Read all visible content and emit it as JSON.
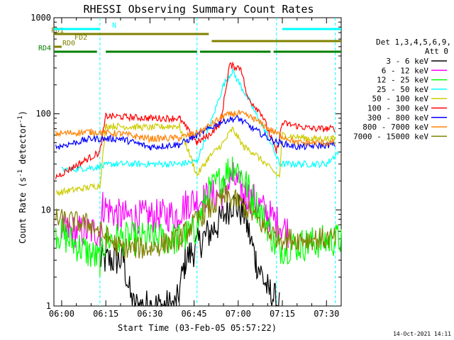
{
  "chart_data": {
    "type": "line",
    "title": "RHESSI Observing Summary Count Rates",
    "xlabel": "Start Time (03-Feb-05 05:57:22)",
    "ylabel_parts": [
      "Count Rate (s",
      "-1",
      " detector",
      "-1",
      ")"
    ],
    "yscale": "log",
    "ylim": [
      1,
      1000
    ],
    "xlim_minutes": [
      "05:57:22",
      "07:35:00"
    ],
    "x_ticks": [
      "06:00",
      "06:15",
      "06:30",
      "06:45",
      "07:00",
      "07:15",
      "07:30"
    ],
    "y_ticks": [
      "1",
      "10",
      "100",
      "1000"
    ],
    "legend_title": [
      "Det 1,3,4,5,6,9,",
      "Att 0"
    ],
    "series": [
      {
        "name": "3 - 6 keV",
        "color": "#000000",
        "points": [
          [
            "06:00",
            null
          ],
          [
            "06:13",
            3
          ],
          [
            "06:21",
            3
          ],
          [
            "06:24",
            1
          ],
          [
            "06:39",
            1
          ],
          [
            "06:42",
            3
          ],
          [
            "06:48",
            5
          ],
          [
            "06:53",
            7
          ],
          [
            "06:58",
            12
          ],
          [
            "07:02",
            9
          ],
          [
            "07:06",
            3
          ],
          [
            "07:10",
            1.5
          ],
          [
            "07:14",
            1
          ]
        ]
      },
      {
        "name": "6 - 12 keV",
        "color": "#ff00ff",
        "points": [
          [
            "06:00",
            6
          ],
          [
            "06:13",
            6
          ],
          [
            "06:14",
            11
          ],
          [
            "06:20",
            8.5
          ],
          [
            "06:30",
            8.5
          ],
          [
            "06:39",
            9
          ],
          [
            "06:43",
            12
          ],
          [
            "06:48",
            13
          ],
          [
            "06:55",
            15
          ],
          [
            "06:58",
            22
          ],
          [
            "07:01",
            16
          ],
          [
            "07:05",
            13
          ],
          [
            "07:10",
            9
          ],
          [
            "07:17",
            6
          ]
        ]
      },
      {
        "name": "12 - 25 keV",
        "color": "#00ff00",
        "points": [
          [
            "05:58",
            6
          ],
          [
            "06:13",
            3
          ],
          [
            "06:15",
            5
          ],
          [
            "06:30",
            5
          ],
          [
            "06:40",
            5
          ],
          [
            "06:45",
            6
          ],
          [
            "06:50",
            15
          ],
          [
            "06:55",
            22
          ],
          [
            "06:58",
            30
          ],
          [
            "07:01",
            24
          ],
          [
            "07:05",
            13
          ],
          [
            "07:10",
            7
          ],
          [
            "07:13",
            4
          ],
          [
            "07:35",
            5
          ]
        ]
      },
      {
        "name": "25 - 50 keV",
        "color": "#00ffff",
        "points": [
          [
            "06:00",
            26
          ],
          [
            "06:13",
            28
          ],
          [
            "06:17",
            30
          ],
          [
            "06:30",
            30
          ],
          [
            "06:40",
            30
          ],
          [
            "06:46",
            32
          ],
          [
            "06:50",
            70
          ],
          [
            "06:55",
            200
          ],
          [
            "06:58",
            280
          ],
          [
            "07:03",
            150
          ],
          [
            "07:06",
            100
          ],
          [
            "07:10",
            60
          ],
          [
            "07:14",
            30
          ],
          [
            "07:18",
            30
          ],
          [
            "07:30",
            30
          ],
          [
            "07:34",
            40
          ]
        ]
      },
      {
        "name": "50 - 100 keV",
        "color": "#cccc00",
        "points": [
          [
            "05:58",
            15
          ],
          [
            "06:13",
            18
          ],
          [
            "06:15",
            75
          ],
          [
            "06:30",
            72
          ],
          [
            "06:40",
            75
          ],
          [
            "06:46",
            23
          ],
          [
            "06:50",
            35
          ],
          [
            "06:55",
            50
          ],
          [
            "06:58",
            70
          ],
          [
            "07:02",
            45
          ],
          [
            "07:05",
            40
          ],
          [
            "07:14",
            22
          ],
          [
            "07:15",
            60
          ],
          [
            "07:25",
            55
          ],
          [
            "07:33",
            55
          ]
        ]
      },
      {
        "name": "100 - 300 keV",
        "color": "#ff0000",
        "points": [
          [
            "05:58",
            22
          ],
          [
            "06:13",
            40
          ],
          [
            "06:15",
            95
          ],
          [
            "06:30",
            90
          ],
          [
            "06:40",
            90
          ],
          [
            "06:46",
            50
          ],
          [
            "06:50",
            60
          ],
          [
            "06:54",
            80
          ],
          [
            "06:57",
            320
          ],
          [
            "07:01",
            300
          ],
          [
            "07:03",
            150
          ],
          [
            "07:08",
            100
          ],
          [
            "07:13",
            40
          ],
          [
            "07:15",
            80
          ],
          [
            "07:25",
            70
          ],
          [
            "07:33",
            70
          ]
        ]
      },
      {
        "name": "300 - 800 keV",
        "color": "#0000ff",
        "points": [
          [
            "05:58",
            45
          ],
          [
            "06:10",
            55
          ],
          [
            "06:20",
            55
          ],
          [
            "06:30",
            45
          ],
          [
            "06:40",
            48
          ],
          [
            "06:47",
            62
          ],
          [
            "06:55",
            85
          ],
          [
            "07:00",
            90
          ],
          [
            "07:05",
            70
          ],
          [
            "07:12",
            52
          ],
          [
            "07:20",
            45
          ],
          [
            "07:33",
            48
          ]
        ]
      },
      {
        "name": "800 - 7000 keV",
        "color": "#ff8000",
        "points": [
          [
            "05:58",
            62
          ],
          [
            "06:10",
            65
          ],
          [
            "06:20",
            62
          ],
          [
            "06:30",
            55
          ],
          [
            "06:40",
            56
          ],
          [
            "06:47",
            65
          ],
          [
            "06:55",
            95
          ],
          [
            "07:00",
            102
          ],
          [
            "07:05",
            90
          ],
          [
            "07:12",
            65
          ],
          [
            "07:20",
            50
          ],
          [
            "07:33",
            50
          ]
        ]
      },
      {
        "name": "7000 - 15000 keV",
        "color": "#808000",
        "points": [
          [
            "05:58",
            8
          ],
          [
            "06:10",
            7
          ],
          [
            "06:20",
            4
          ],
          [
            "06:30",
            4
          ],
          [
            "06:40",
            5
          ],
          [
            "06:48",
            9
          ],
          [
            "06:56",
            14
          ],
          [
            "07:00",
            12
          ],
          [
            "07:05",
            9
          ],
          [
            "07:10",
            6
          ],
          [
            "07:15",
            5
          ],
          [
            "07:33",
            5
          ]
        ]
      }
    ],
    "state_bars": [
      {
        "label": "FD1",
        "color": "#808000",
        "segments": [
          [
            "05:57:22",
            "06:50"
          ]
        ]
      },
      {
        "label": "FD2",
        "color": "#808000",
        "segments": [
          [
            "06:51",
            "07:35"
          ]
        ]
      },
      {
        "label": "RD0",
        "color": "#808000",
        "segments": [
          [
            "05:57:22",
            "06:00"
          ]
        ]
      },
      {
        "label": "RD4",
        "color": "#008000",
        "segments": [
          [
            "05:57:22",
            "06:12"
          ],
          [
            "06:15",
            "06:46"
          ],
          [
            "06:47",
            "07:11"
          ],
          [
            "07:12",
            "07:35"
          ]
        ]
      },
      {
        "label": "N",
        "color": "#00ffff",
        "segments": [
          [
            "05:57:22",
            "06:13"
          ],
          [
            "07:15",
            "07:35"
          ]
        ]
      }
    ],
    "night_markers": [
      "06:13",
      "06:46",
      "07:13",
      "07:33"
    ],
    "legend": {
      "position": "right"
    },
    "footer_date": "14-Oct-2021 14:11"
  }
}
